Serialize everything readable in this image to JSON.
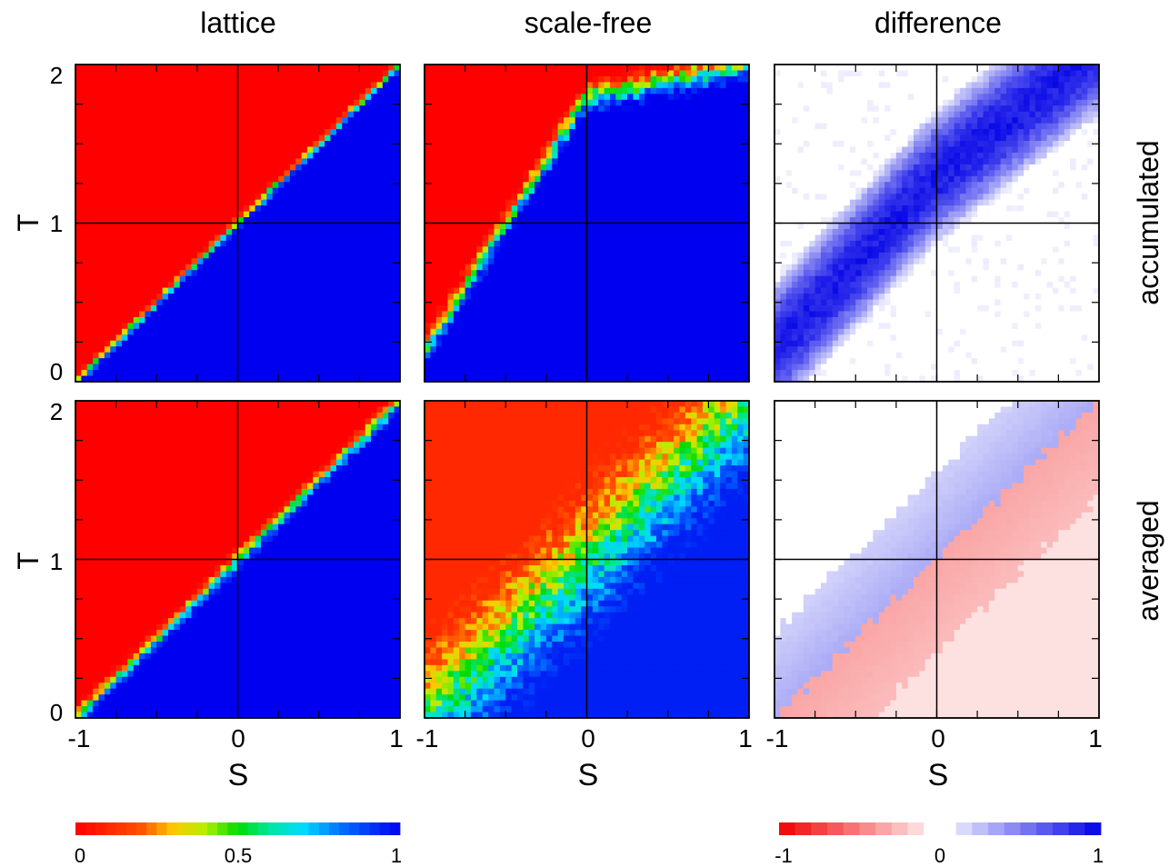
{
  "columns": [
    "lattice",
    "scale-free",
    "difference"
  ],
  "rows": [
    "accumulated",
    "averaged"
  ],
  "ylabel": "T",
  "xlabel": "S",
  "y_ticklabels": [
    "0",
    "1",
    "2"
  ],
  "x_ticklabels": [
    "-1",
    "0",
    "1"
  ],
  "colorbars": [
    {
      "ticklabels": [
        "0",
        "0.5",
        "1"
      ],
      "range": [
        0,
        1
      ],
      "palette": "rainbow-red-to-blue"
    },
    {
      "ticklabels": [
        "-1",
        "0",
        "1"
      ],
      "range": [
        -1,
        1
      ],
      "palette": "red-white-blue"
    }
  ],
  "chart_data": [
    {
      "type": "heatmap",
      "title": "lattice",
      "row": "accumulated",
      "xlabel": "S",
      "ylabel": "T",
      "xlim": [
        -1,
        1
      ],
      "ylim": [
        0,
        2
      ],
      "description_values": {
        "boundary_slope": 1.0,
        "boundary_intercept": 1.0,
        "boundary_width": 0.05,
        "upper_left": 0,
        "lower_right": 1
      }
    },
    {
      "type": "heatmap",
      "title": "scale-free",
      "row": "accumulated",
      "xlabel": "S",
      "ylabel": "T",
      "xlim": [
        -1,
        1
      ],
      "ylim": [
        0,
        2
      ],
      "description_values": {
        "boundary": [
          [
            -1.0,
            0.2
          ],
          [
            -0.5,
            1.0
          ],
          [
            0.0,
            1.8
          ],
          [
            1.0,
            2.0
          ]
        ],
        "boundary_width": 0.12,
        "upper_left": 0,
        "lower_right": 1
      }
    },
    {
      "type": "heatmap",
      "title": "difference",
      "row": "accumulated",
      "xlabel": "S",
      "ylabel": "T",
      "xlim": [
        -1,
        1
      ],
      "ylim": [
        0,
        2
      ],
      "description_values": {
        "band_center": [
          [
            -1.0,
            0.2
          ],
          [
            0.0,
            1.3
          ],
          [
            1.0,
            2.1
          ]
        ],
        "band_halfwidth": 0.45,
        "peak": 0.9,
        "outside": 0
      }
    },
    {
      "type": "heatmap",
      "title": "lattice",
      "row": "averaged",
      "xlabel": "S",
      "ylabel": "T",
      "xlim": [
        -1,
        1
      ],
      "ylim": [
        0,
        2
      ],
      "description_values": {
        "boundary_slope": 1.0,
        "boundary_intercept": 1.0,
        "boundary_width": 0.08,
        "upper_left": 0,
        "lower_right": 1
      }
    },
    {
      "type": "heatmap",
      "title": "scale-free",
      "row": "averaged",
      "xlabel": "S",
      "ylabel": "T",
      "xlim": [
        -1,
        1
      ],
      "ylim": [
        0,
        2
      ],
      "description_values": {
        "boundary_slope": 1.0,
        "boundary_intercept": 1.0,
        "boundary_width": 0.55,
        "upper_left": 0.1,
        "lower_right": 0.95
      }
    },
    {
      "type": "heatmap",
      "title": "difference",
      "row": "averaged",
      "xlabel": "S",
      "ylabel": "T",
      "xlim": [
        -1,
        1
      ],
      "ylim": [
        0,
        2
      ],
      "description_values": {
        "above_diagonal": 0.25,
        "below_diagonal": -0.35,
        "far_from_diagonal": 0.05
      }
    }
  ]
}
